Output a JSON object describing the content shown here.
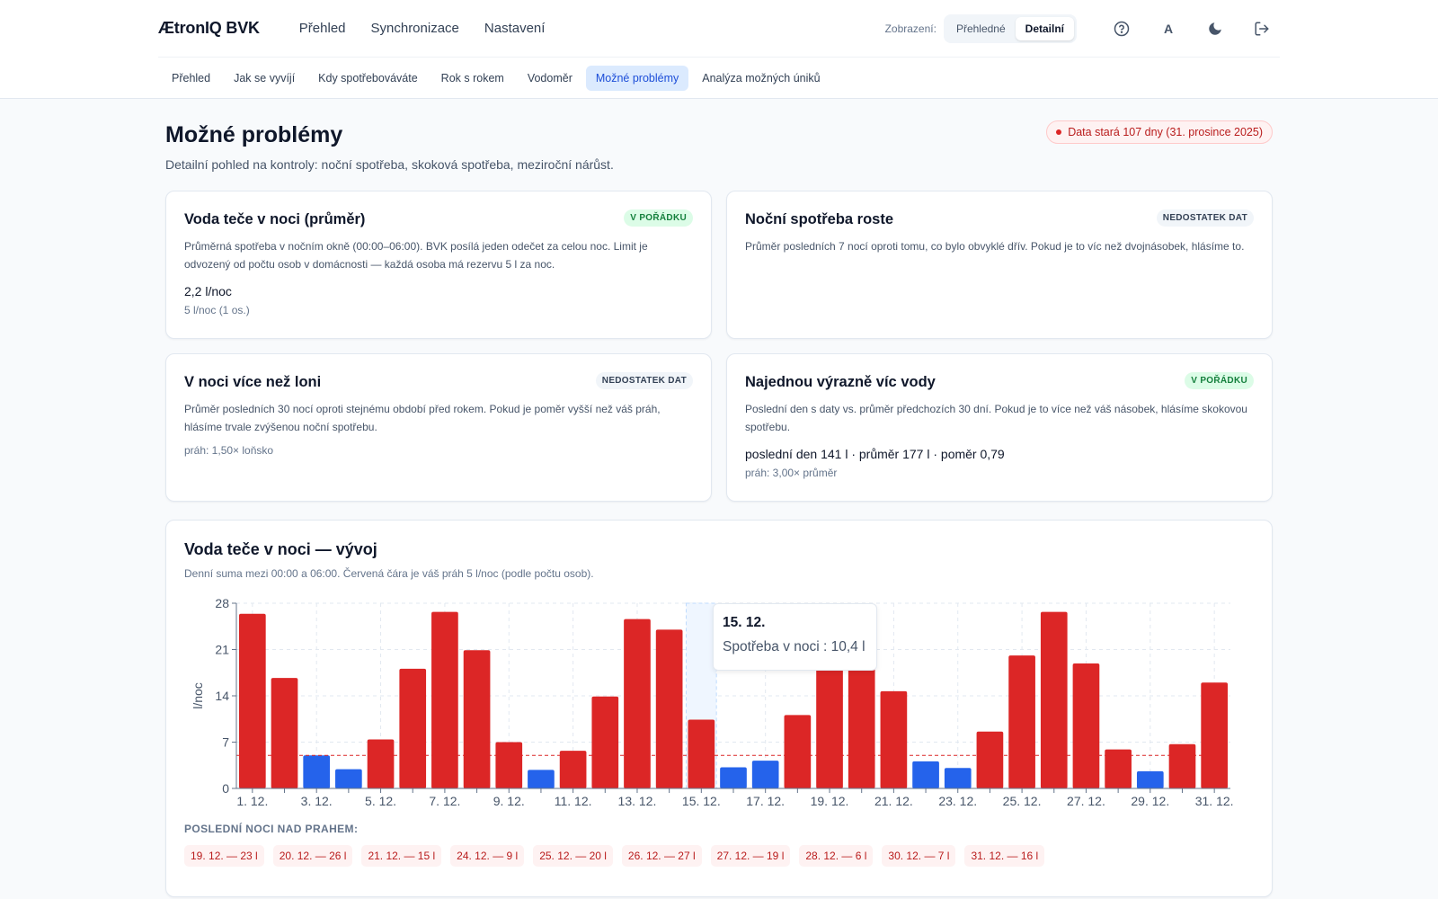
{
  "app": {
    "brand": "ÆtronIQ BVK"
  },
  "nav": {
    "items": [
      "Přehled",
      "Synchronizace",
      "Nastavení"
    ]
  },
  "view": {
    "label": "Zobrazení:",
    "options": [
      "Přehledné",
      "Detailní"
    ],
    "selected": "Detailní"
  },
  "toolbar": {
    "font_label": "A"
  },
  "tabs": {
    "items": [
      "Přehled",
      "Jak se vyvíjí",
      "Kdy spotřebováváte",
      "Rok s rokem",
      "Vodoměr",
      "Možné problémy",
      "Analýza možných úniků"
    ],
    "active": "Možné problémy"
  },
  "page": {
    "title": "Možné problémy",
    "subtitle": "Detailní pohled na kontroly: noční spotřeba, skoková spotřeba, meziroční nárůst.",
    "stale_badge": "Data stará 107 dny (31. prosince 2025)"
  },
  "cards": [
    {
      "title": "Voda teče v noci (průměr)",
      "status": "V POŘÁDKU",
      "status_kind": "ok",
      "desc": "Průměrná spotřeba v nočním okně (00:00–06:00). BVK posílá jeden odečet za celou noc. Limit je odvozený od počtu osob v domácnosti — každá osoba má rezervu 5 l za noc.",
      "value": "2,2 l/noc",
      "sub": "5 l/noc (1 os.)"
    },
    {
      "title": "Noční spotřeba roste",
      "status": "NEDOSTATEK DAT",
      "status_kind": "na",
      "desc": "Průměr posledních 7 nocí oproti tomu, co bylo obvyklé dřív. Pokud je to víc než dvojnásobek, hlásíme to."
    },
    {
      "title": "V noci více než loni",
      "status": "NEDOSTATEK DAT",
      "status_kind": "na",
      "desc": "Průměr posledních 30 nocí oproti stejnému období před rokem. Pokud je poměr vyšší než váš práh, hlásíme trvale zvýšenou noční spotřebu.",
      "threshold": "práh: 1,50× loňsko"
    },
    {
      "title": "Najednou výrazně víc vody",
      "status": "V POŘÁDKU",
      "status_kind": "ok",
      "desc": "Poslední den s daty vs. průměr předchozích 30 dní. Pokud je to více než váš násobek, hlásíme skokovou spotřebu.",
      "value": "poslední den 141 l · průměr 177 l · poměr 0,79",
      "sub": "práh: 3,00× průměr"
    }
  ],
  "chart_section": {
    "title": "Voda teče v noci — vývoj",
    "desc": "Denní suma mezi 00:00 a 06:00. Červená čára je váš práh 5 l/noc (podle počtu osob).",
    "tooltip": {
      "date": "15. 12.",
      "text": "Spotřeba v noci : 10,4 l"
    },
    "above_label": "POSLEDNÍ NOCI NAD PRAHEM:",
    "above_chips": [
      "19. 12. — 23 l",
      "20. 12. — 26 l",
      "21. 12. — 15 l",
      "24. 12. — 9 l",
      "25. 12. — 20 l",
      "26. 12. — 27 l",
      "27. 12. — 19 l",
      "28. 12. — 6 l",
      "30. 12. — 7 l",
      "31. 12. — 16 l"
    ]
  },
  "chart_data": {
    "type": "bar",
    "title": "",
    "ylabel": "l/noc",
    "ylim": [
      0,
      28
    ],
    "yticks": [
      0,
      7,
      14,
      21,
      28
    ],
    "threshold": 5,
    "categories": [
      "1. 12.",
      "2. 12.",
      "3. 12.",
      "4. 12.",
      "5. 12.",
      "6. 12.",
      "7. 12.",
      "8. 12.",
      "9. 12.",
      "10. 12.",
      "11. 12.",
      "12. 12.",
      "13. 12.",
      "14. 12.",
      "15. 12.",
      "16. 12.",
      "17. 12.",
      "18. 12.",
      "19. 12.",
      "20. 12.",
      "21. 12.",
      "22. 12.",
      "23. 12.",
      "24. 12.",
      "25. 12.",
      "26. 12.",
      "27. 12.",
      "28. 12.",
      "29. 12.",
      "30. 12.",
      "31. 12."
    ],
    "xtick_labels": [
      "1. 12.",
      "3. 12.",
      "5. 12.",
      "7. 12.",
      "9. 12.",
      "11. 12.",
      "13. 12.",
      "15. 12.",
      "17. 12.",
      "19. 12.",
      "21. 12.",
      "23. 12.",
      "25. 12.",
      "27. 12.",
      "29. 12.",
      "31. 12."
    ],
    "values": [
      26.4,
      16.7,
      5.0,
      2.9,
      7.4,
      18.1,
      26.7,
      20.9,
      7.0,
      2.8,
      5.7,
      13.9,
      25.6,
      24.0,
      10.4,
      3.2,
      4.2,
      11.1,
      23.0,
      26.0,
      14.7,
      4.1,
      3.1,
      8.6,
      20.1,
      26.7,
      18.9,
      5.9,
      2.6,
      6.7,
      16.0
    ],
    "highlight": "15. 12.",
    "colors": {
      "above": "#dc2626",
      "below": "#2563eb",
      "threshold": "#dc2626",
      "grid": "#e2e8f0"
    }
  }
}
